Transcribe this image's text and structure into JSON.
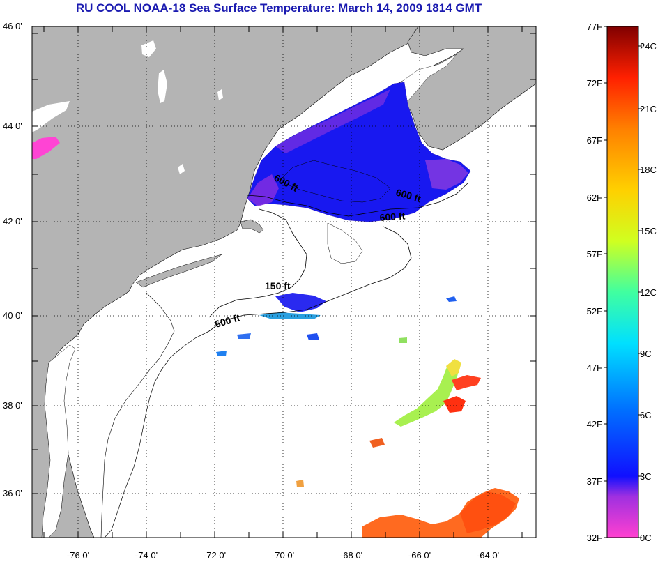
{
  "title": "RU COOL  NOAA-18  Sea Surface Temperature:  March 14, 2009 1814 GMT",
  "map": {
    "lat_range": [
      35,
      46
    ],
    "lon_range": [
      -77,
      -63
    ],
    "lat_ticks": [
      {
        "value": 46,
        "label": "46 0'"
      },
      {
        "value": 44,
        "label": "44 0'"
      },
      {
        "value": 42,
        "label": "42 0'"
      },
      {
        "value": 40,
        "label": "40 0'"
      },
      {
        "value": 38,
        "label": "38 0'"
      },
      {
        "value": 36,
        "label": "36 0'"
      }
    ],
    "lon_ticks": [
      {
        "value": -76,
        "label": "-76 0'"
      },
      {
        "value": -74,
        "label": "-74 0'"
      },
      {
        "value": -72,
        "label": "-72 0'"
      },
      {
        "value": -70,
        "label": "-70 0'"
      },
      {
        "value": -68,
        "label": "-68 0'"
      },
      {
        "value": -66,
        "label": "-66 0'"
      },
      {
        "value": -64,
        "label": "-64 0'"
      }
    ],
    "contour_labels": [
      {
        "text": "600 ft",
        "lon": -69.6,
        "lat": 42.8
      },
      {
        "text": "600 ft",
        "lon": -65.3,
        "lat": 42.5
      },
      {
        "text": "600 ft",
        "lon": -66.2,
        "lat": 42.1
      },
      {
        "text": "150 ft",
        "lon": -69.9,
        "lat": 40.6
      },
      {
        "text": "600 ft",
        "lon": -71.5,
        "lat": 39.9
      }
    ],
    "land_color": "#b4b4b4",
    "water_color": "#ffffff"
  },
  "colorbar": {
    "fahrenheit_labels": [
      "77F",
      "72F",
      "67F",
      "62F",
      "57F",
      "52F",
      "47F",
      "42F",
      "37F",
      "32F"
    ],
    "celsius_labels": [
      "24C",
      "21C",
      "18C",
      "15C",
      "12C",
      "9C",
      "6C",
      "3C",
      "0C"
    ],
    "colors": [
      "#ff40d0",
      "#a030e0",
      "#1010ff",
      "#0070ff",
      "#00e0ff",
      "#40ffa0",
      "#d0ff20",
      "#ffd000",
      "#ff8000",
      "#ff2000",
      "#800000"
    ]
  }
}
